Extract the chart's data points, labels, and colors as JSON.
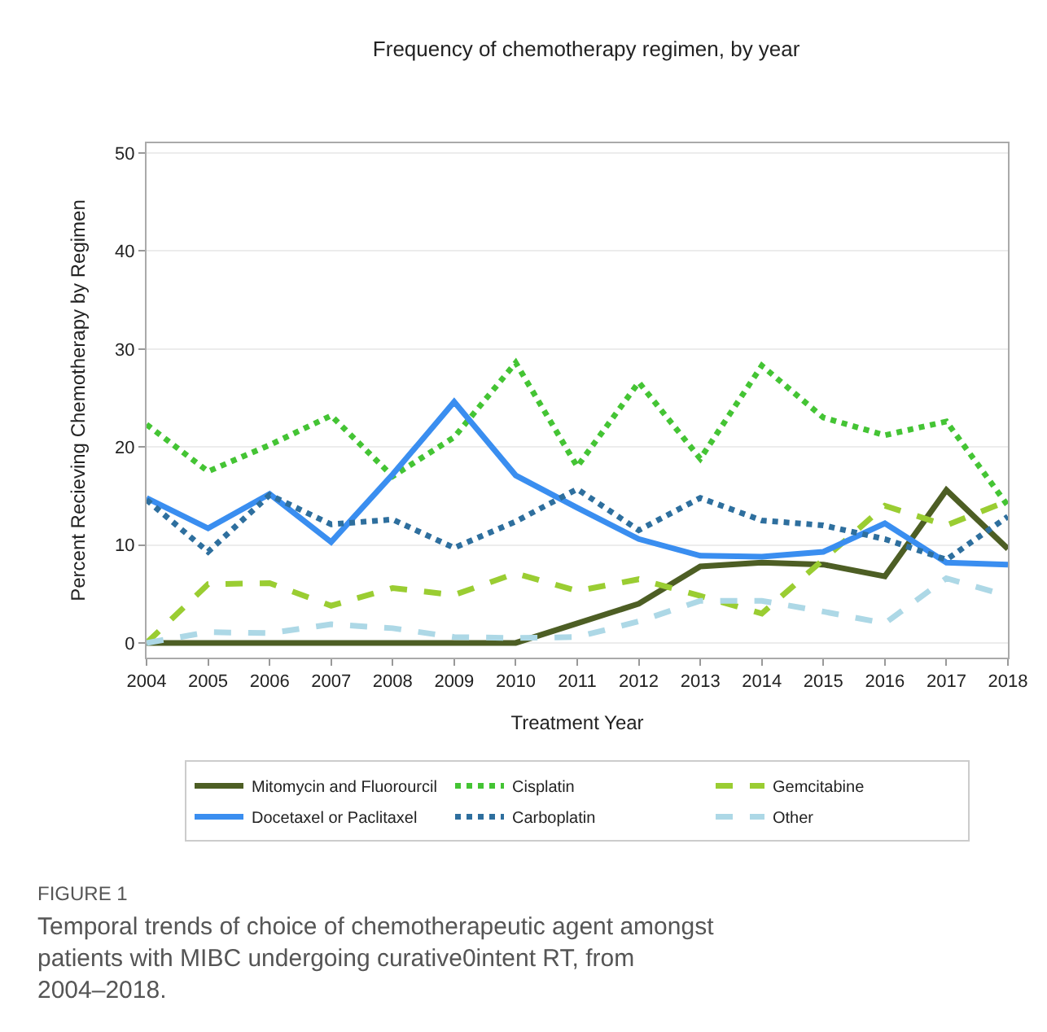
{
  "chart_data": {
    "type": "line",
    "title": "Frequency of chemotherapy regimen, by year",
    "xlabel": "Treatment Year",
    "ylabel": "Percent Recieving Chemotherapy by Regimen",
    "x": [
      2004,
      2005,
      2006,
      2007,
      2008,
      2009,
      2010,
      2011,
      2012,
      2013,
      2014,
      2015,
      2016,
      2017,
      2018
    ],
    "xlim": [
      2004,
      2018
    ],
    "xticks": [
      2004,
      2005,
      2006,
      2007,
      2008,
      2009,
      2010,
      2011,
      2012,
      2013,
      2014,
      2015,
      2016,
      2017,
      2018
    ],
    "ylim": [
      -1.5,
      51
    ],
    "yticks": [
      0,
      10,
      20,
      30,
      40,
      50
    ],
    "grid": "y",
    "legend": "bottom",
    "series": [
      {
        "name": "Mitomycin and Fluorourcil",
        "color": "#4d5e24",
        "line_style": "solid",
        "values": [
          0,
          0,
          0,
          0,
          0,
          0,
          0,
          2,
          4,
          7.8,
          8.2,
          8,
          6.8,
          15.6,
          9.6
        ]
      },
      {
        "name": "Cisplatin",
        "color": "#44c434",
        "line_style": "dotted",
        "values": [
          22.3,
          17.5,
          20.2,
          23.2,
          17,
          21,
          28.6,
          18,
          26.6,
          18.8,
          28.3,
          23,
          21.2,
          22.6,
          14
        ]
      },
      {
        "name": "Gemcitabine",
        "color": "#9acd32",
        "line_style": "dashed",
        "values": [
          0,
          6,
          6.1,
          3.8,
          5.6,
          4.9,
          7.1,
          5.3,
          6.5,
          4.8,
          3,
          8.5,
          14,
          12,
          14.5
        ]
      },
      {
        "name": "Docetaxel or Paclitaxel",
        "color": "#3a8ef0",
        "line_style": "solid",
        "values": [
          14.8,
          11.7,
          15.2,
          10.3,
          17.2,
          24.6,
          17.1,
          13.8,
          10.6,
          8.9,
          8.8,
          9.3,
          12.2,
          8.2,
          8
        ]
      },
      {
        "name": "Carboplatin",
        "color": "#2e6f9e",
        "line_style": "dotted",
        "values": [
          14.6,
          9.3,
          15.1,
          12.1,
          12.6,
          9.7,
          12.4,
          15.7,
          11.5,
          14.8,
          12.5,
          12,
          10.6,
          8.5,
          12.9
        ]
      },
      {
        "name": "Other",
        "color": "#add8e6",
        "line_style": "dashed",
        "values": [
          0,
          1.1,
          1,
          1.9,
          1.5,
          0.6,
          0.5,
          0.6,
          2.2,
          4.3,
          4.3,
          3.2,
          2,
          6.6,
          4.8
        ]
      }
    ],
    "annotations": [
      "FIGURE 1",
      "Temporal trends of choice of chemotherapeutic agent amongst patients with MIBC undergoing curative0intent RT, from 2004–2018."
    ]
  }
}
